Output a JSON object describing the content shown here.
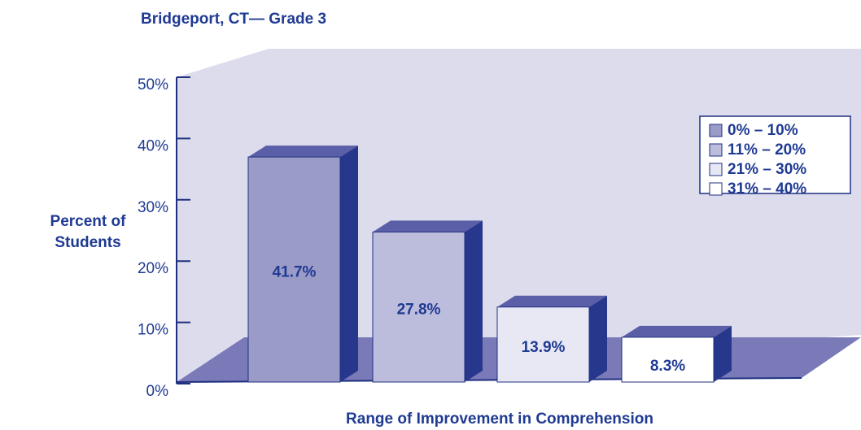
{
  "chart_data": {
    "type": "bar3d",
    "title": "Bridgeport, CT— Grade 3",
    "ylabel": [
      "Percent of",
      "Students"
    ],
    "xlabel": "Range of Improvement in Comprehension",
    "categories": [
      "0% – 10%",
      "11% – 20%",
      "21% – 30%",
      "31% – 40%"
    ],
    "values": [
      41.7,
      27.8,
      13.9,
      8.3
    ],
    "value_labels": [
      "41.7%",
      "27.8%",
      "13.9%",
      "8.3%"
    ],
    "colors": [
      "#9b9bc8",
      "#bcbcdc",
      "#e8e8f4",
      "#ffffff"
    ],
    "ylim": [
      0,
      50
    ],
    "yticks": [
      {
        "value": 0,
        "label": "0%"
      },
      {
        "value": 10,
        "label": "10%"
      },
      {
        "value": 20,
        "label": "20%"
      },
      {
        "value": 30,
        "label": "30%"
      },
      {
        "value": 40,
        "label": "40%"
      },
      {
        "value": 50,
        "label": "50%"
      }
    ],
    "legend": "top-right"
  }
}
